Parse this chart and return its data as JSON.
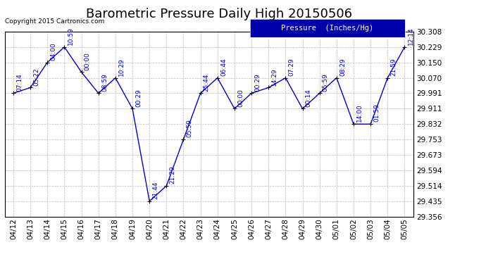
{
  "title": "Barometric Pressure Daily High 20150506",
  "copyright": "Copyright 2015 Cartronics.com",
  "legend_label": "Pressure  (Inches/Hg)",
  "line_color": "#0000cc",
  "marker_color": "#000000",
  "background_color": "#ffffff",
  "grid_color": "#bbbbbb",
  "dates": [
    "04/12",
    "04/13",
    "04/14",
    "04/15",
    "04/16",
    "04/17",
    "04/18",
    "04/19",
    "04/20",
    "04/21",
    "04/22",
    "04/23",
    "04/24",
    "04/25",
    "04/26",
    "04/27",
    "04/28",
    "04/29",
    "04/30",
    "05/01",
    "05/02",
    "05/03",
    "05/04",
    "05/05"
  ],
  "values": [
    29.991,
    30.02,
    30.15,
    30.229,
    30.1,
    29.991,
    30.07,
    29.911,
    29.435,
    29.514,
    29.753,
    29.991,
    30.07,
    29.911,
    29.991,
    30.02,
    30.07,
    29.911,
    29.991,
    30.07,
    29.832,
    29.832,
    30.07,
    30.229
  ],
  "annotations": [
    "07:14",
    "05:22",
    "04:00",
    "10:59",
    "00:00",
    "08:59",
    "10:29",
    "00:29",
    "21:44",
    "21:29",
    "05:59",
    "25:44",
    "06:44",
    "00:00",
    "00:29",
    "14:29",
    "07:29",
    "00:14",
    "05:59",
    "08:29",
    "14:00",
    "01:59",
    "21:59",
    "12:14"
  ],
  "ylim_min": 29.356,
  "ylim_max": 30.308,
  "yticks": [
    29.356,
    29.435,
    29.514,
    29.594,
    29.673,
    29.753,
    29.832,
    29.911,
    29.991,
    30.07,
    30.15,
    30.229,
    30.308
  ],
  "title_fontsize": 13,
  "tick_fontsize": 7.5,
  "annotation_fontsize": 6.5,
  "copyright_fontsize": 6.5,
  "legend_fontsize": 7.5
}
